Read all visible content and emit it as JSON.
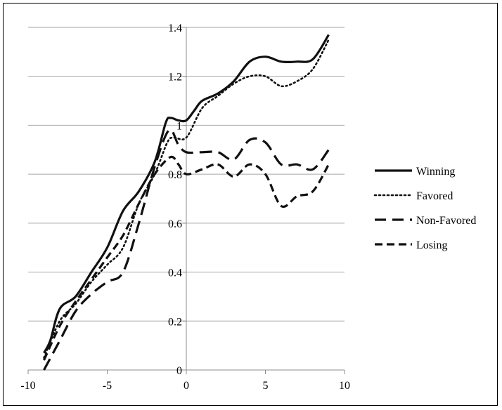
{
  "chart_data": {
    "type": "line",
    "title": "",
    "xlabel": "",
    "ylabel": "",
    "xlim": [
      -10,
      10
    ],
    "ylim": [
      0,
      1.4
    ],
    "x_ticks": [
      -10,
      -5,
      0,
      5,
      10
    ],
    "x_tick_labels": [
      "-10",
      "-5",
      "0",
      "5",
      "10"
    ],
    "y_ticks": [
      0,
      0.2,
      0.4,
      0.6,
      0.8,
      1,
      1.2,
      1.4
    ],
    "y_tick_labels": [
      "0",
      "0.2",
      "0.4",
      "0.6",
      "0.8",
      "1",
      "1.2",
      "1.4"
    ],
    "grid": "horizontal",
    "legend_position": "right",
    "series": [
      {
        "name": "Winning",
        "style": "solid",
        "color": "#111111",
        "x": [
          -9,
          -8.6,
          -8,
          -7,
          -6,
          -5,
          -4,
          -3,
          -2,
          -1.3,
          -1,
          -0.5,
          0,
          0.5,
          1,
          2,
          3,
          4,
          5,
          6,
          7,
          8,
          9
        ],
        "y": [
          0.07,
          0.12,
          0.25,
          0.3,
          0.4,
          0.5,
          0.65,
          0.73,
          0.85,
          1.01,
          1.03,
          1.02,
          1.02,
          1.06,
          1.1,
          1.13,
          1.18,
          1.26,
          1.28,
          1.26,
          1.26,
          1.27,
          1.37
        ]
      },
      {
        "name": "Favored",
        "style": "dotted",
        "color": "#111111",
        "x": [
          -9,
          -8,
          -7,
          -6,
          -5,
          -4,
          -3,
          -2,
          -1.2,
          -0.8,
          0,
          1,
          2,
          3,
          4,
          5,
          6,
          7,
          8,
          9
        ],
        "y": [
          0.05,
          0.2,
          0.27,
          0.36,
          0.43,
          0.5,
          0.68,
          0.8,
          0.93,
          0.95,
          0.95,
          1.07,
          1.12,
          1.17,
          1.2,
          1.2,
          1.16,
          1.18,
          1.23,
          1.35
        ]
      },
      {
        "name": "Non-Favored",
        "style": "long-dash",
        "color": "#111111",
        "x": [
          -9,
          -8,
          -7,
          -6,
          -5,
          -4,
          -3,
          -2,
          -1.1,
          -0.5,
          0,
          1,
          2,
          3,
          4,
          5,
          6,
          7,
          8,
          9
        ],
        "y": [
          0.0,
          0.12,
          0.24,
          0.31,
          0.36,
          0.4,
          0.6,
          0.83,
          0.98,
          0.92,
          0.89,
          0.89,
          0.89,
          0.86,
          0.94,
          0.93,
          0.84,
          0.84,
          0.82,
          0.9
        ]
      },
      {
        "name": "Losing",
        "style": "dashed",
        "color": "#111111",
        "x": [
          -9,
          -8,
          -7,
          -6,
          -5,
          -4,
          -3,
          -2,
          -1,
          -0.5,
          0,
          1,
          2,
          3,
          4,
          5,
          6,
          7,
          8,
          9
        ],
        "y": [
          0.04,
          0.18,
          0.28,
          0.37,
          0.46,
          0.55,
          0.68,
          0.8,
          0.87,
          0.84,
          0.8,
          0.82,
          0.84,
          0.79,
          0.84,
          0.8,
          0.67,
          0.71,
          0.73,
          0.84
        ]
      }
    ]
  }
}
